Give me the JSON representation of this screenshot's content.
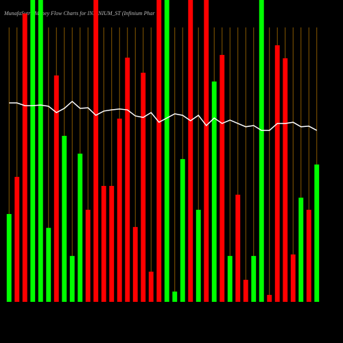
{
  "chart_data": {
    "type": "bar",
    "title": "MunafaSutra Money Flow Charts for INFINIUM_ST (Infinium Phar",
    "categories": [
      null,
      null,
      null,
      null,
      null,
      null,
      null,
      null,
      null,
      null,
      null,
      null,
      null,
      null,
      null,
      null,
      null,
      null,
      null,
      null,
      null,
      null,
      null,
      null,
      null,
      null,
      null,
      null,
      null,
      null,
      null,
      null,
      null,
      null,
      null,
      null,
      null,
      null,
      null,
      null
    ],
    "values": [
      29.1,
      41.4,
      95.5,
      100,
      100,
      24.5,
      75,
      55,
      15.2,
      49.1,
      30.5,
      100,
      38.4,
      38.4,
      60.7,
      80.9,
      24.8,
      75.9,
      10,
      100,
      100,
      3.4,
      47.3,
      100,
      30.5,
      100,
      73,
      81.8,
      15.2,
      35.5,
      7.3,
      15.2,
      100,
      2.3,
      85,
      80.7,
      15.7,
      34.5,
      30.5,
      45.5
    ],
    "colors": [
      "#00ff00",
      "#ff0000",
      "#ff0000",
      "#00ff00",
      "#00ff00",
      "#00ff00",
      "#ff0000",
      "#00ff00",
      "#00ff00",
      "#00ff00",
      "#ff0000",
      "#ff0000",
      "#ff0000",
      "#ff0000",
      "#ff0000",
      "#ff0000",
      "#ff0000",
      "#ff0000",
      "#ff0000",
      "#ff0000",
      "#00ff00",
      "#00ff00",
      "#00ff00",
      "#ff0000",
      "#00ff00",
      "#ff0000",
      "#00ff00",
      "#ff0000",
      "#00ff00",
      "#ff0000",
      "#ff0000",
      "#00ff00",
      "#00ff00",
      "#ff0000",
      "#ff0000",
      "#ff0000",
      "#ff0000",
      "#00ff00",
      "#ff0000",
      "#00ff00"
    ],
    "line": {
      "color": "#ffffff",
      "values": [
        65.9,
        65.9,
        65,
        65,
        65.2,
        64.8,
        62.7,
        64.1,
        66.4,
        64.1,
        64.3,
        61.8,
        63.2,
        63.6,
        63.9,
        63.6,
        61.6,
        61.1,
        62.7,
        59.5,
        60.9,
        62.3,
        61.8,
        60,
        61.8,
        58.4,
        60.9,
        59.1,
        60.2,
        59.1,
        58,
        58.4,
        56.8,
        56.8,
        59.1,
        59.1,
        59.5,
        58,
        58.2,
        56.8
      ]
    },
    "grid_color": "#8a5a00",
    "ylim": [
      0,
      100
    ]
  }
}
